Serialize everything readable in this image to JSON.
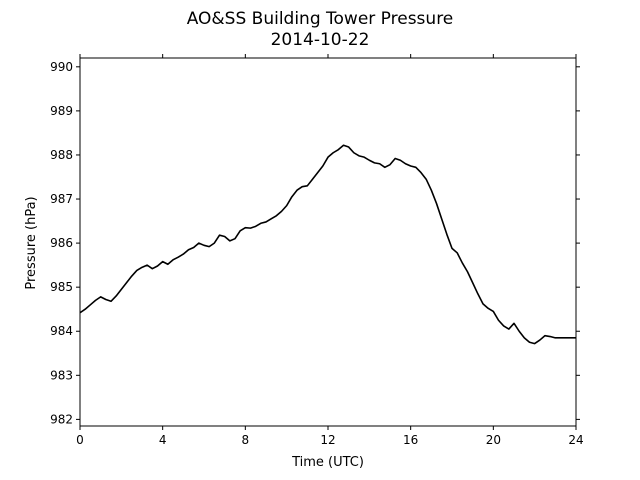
{
  "chart_data": {
    "type": "line",
    "title": "AO&SS Building Tower Pressure",
    "subtitle": "2014-10-22",
    "xlabel": "Time (UTC)",
    "ylabel": "Pressure (hPa)",
    "xlim": [
      0,
      24
    ],
    "ylim": [
      981.85,
      990.2
    ],
    "x_ticks": [
      0,
      4,
      8,
      12,
      16,
      20,
      24
    ],
    "y_ticks": [
      982,
      983,
      984,
      985,
      986,
      987,
      988,
      989,
      990
    ],
    "grid": false,
    "line_color": "#000000",
    "series": [
      {
        "x": [
          0,
          0.25,
          0.5,
          0.75,
          1.0,
          1.25,
          1.5,
          1.75,
          2.0,
          2.25,
          2.5,
          2.75,
          3.0,
          3.25,
          3.5,
          3.75,
          4.0,
          4.25,
          4.5,
          4.75,
          5.0,
          5.25,
          5.5,
          5.75,
          6.0,
          6.25,
          6.5,
          6.75,
          7.0,
          7.25,
          7.5,
          7.75,
          8.0,
          8.25,
          8.5,
          8.75,
          9.0,
          9.25,
          9.5,
          9.75,
          10.0,
          10.25,
          10.5,
          10.75,
          11.0,
          11.25,
          11.5,
          11.75,
          12.0,
          12.25,
          12.5,
          12.75,
          13.0,
          13.25,
          13.5,
          13.75,
          14.0,
          14.25,
          14.5,
          14.75,
          15.0,
          15.25,
          15.5,
          15.75,
          16.0,
          16.25,
          16.5,
          16.75,
          17.0,
          17.25,
          17.5,
          17.75,
          18.0,
          18.25,
          18.5,
          18.75,
          19.0,
          19.25,
          19.5,
          19.75,
          20.0,
          20.25,
          20.5,
          20.75,
          21.0,
          21.25,
          21.5,
          21.75,
          22.0,
          22.25,
          22.5,
          22.75,
          23.0,
          23.25,
          23.5,
          23.75,
          24.0
        ],
        "y": [
          984.42,
          984.5,
          984.6,
          984.7,
          984.78,
          984.72,
          984.68,
          984.8,
          984.95,
          985.1,
          985.25,
          985.38,
          985.45,
          985.5,
          985.42,
          985.48,
          985.58,
          985.52,
          985.62,
          985.68,
          985.75,
          985.85,
          985.9,
          986.0,
          985.95,
          985.92,
          986.0,
          986.18,
          986.15,
          986.05,
          986.1,
          986.28,
          986.35,
          986.34,
          986.38,
          986.45,
          986.48,
          986.55,
          986.62,
          986.72,
          986.85,
          987.05,
          987.2,
          987.28,
          987.3,
          987.45,
          987.6,
          987.75,
          987.95,
          988.05,
          988.12,
          988.22,
          988.18,
          988.05,
          987.98,
          987.95,
          987.88,
          987.82,
          987.8,
          987.72,
          987.78,
          987.92,
          987.88,
          987.8,
          987.75,
          987.72,
          987.6,
          987.45,
          987.2,
          986.9,
          986.55,
          986.2,
          985.88,
          985.78,
          985.55,
          985.35,
          985.1,
          984.85,
          984.62,
          984.52,
          984.45,
          984.25,
          984.12,
          984.05,
          984.18,
          984.0,
          983.85,
          983.75,
          983.72,
          983.8,
          983.9,
          983.88,
          983.85,
          983.85,
          983.85,
          983.85,
          983.85
        ]
      }
    ]
  }
}
